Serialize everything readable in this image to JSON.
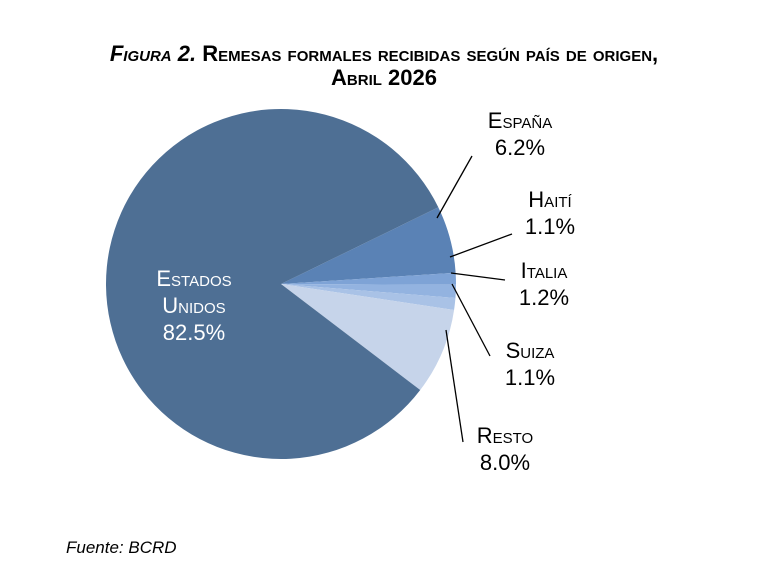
{
  "title": {
    "figure_label": "Figura 2.",
    "line1": "Remesas formales recibidas según país de origen,",
    "line2": "Abril 2026"
  },
  "source": "Fuente: BCRD",
  "colors": {
    "estados_unidos": "#4e6f94",
    "espana": "#5a82b5",
    "haiti": "#7ea3d6",
    "italia": "#93b3e0",
    "suiza": "#a9c2e6",
    "resto": "#c6d4ea",
    "leader": "#000000"
  },
  "chart_data": {
    "type": "pie",
    "title": "Figura 2. Remesas formales recibidas según país de origen, Abril 2026",
    "slices": [
      {
        "key": "espana",
        "label": "España",
        "value": 6.2,
        "value_label": "6.2%"
      },
      {
        "key": "haiti",
        "label": "Haití",
        "value": 1.1,
        "value_label": "1.1%"
      },
      {
        "key": "italia",
        "label": "Italia",
        "value": 1.2,
        "value_label": "1.2%"
      },
      {
        "key": "suiza",
        "label": "Suiza",
        "value": 1.1,
        "value_label": "1.1%"
      },
      {
        "key": "resto",
        "label": "Resto",
        "value": 8.0,
        "value_label": "8.0%"
      },
      {
        "key": "estados_unidos",
        "label_lines": [
          "Estados",
          "Unidos"
        ],
        "value": 82.5,
        "value_label": "82.5%"
      }
    ]
  }
}
